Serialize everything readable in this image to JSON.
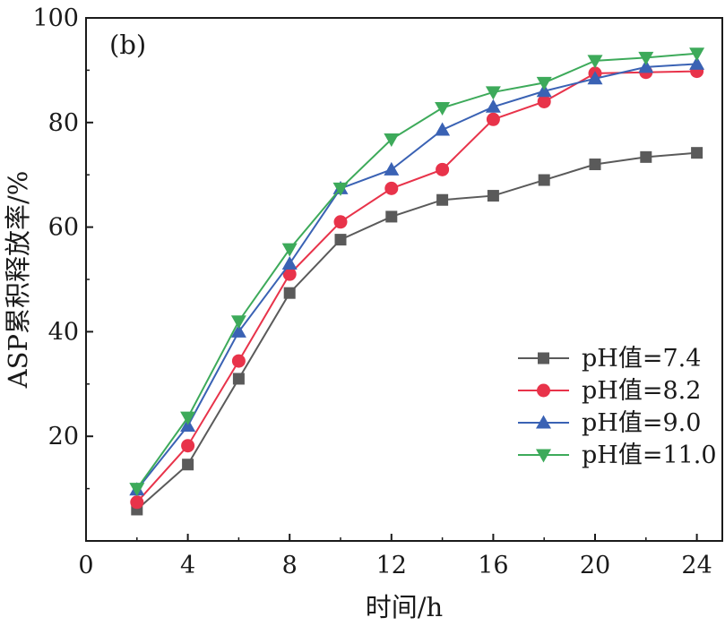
{
  "chart_data": {
    "type": "line",
    "panel_label": "(b)",
    "title": "",
    "xlabel": "时间/h",
    "ylabel": "ASP累积释放率/%",
    "xlim": [
      0,
      25
    ],
    "ylim": [
      0,
      100
    ],
    "xticks": [
      0,
      4,
      8,
      12,
      16,
      20,
      24
    ],
    "yticks": [
      20,
      40,
      60,
      80,
      100
    ],
    "grid": false,
    "legend_position": "bottom-right",
    "x": [
      2,
      4,
      6,
      8,
      10,
      12,
      14,
      16,
      18,
      20,
      22,
      24
    ],
    "series": [
      {
        "name": "pH值=7.4",
        "color": "#5a5a5a",
        "marker": "square",
        "values": [
          6.0,
          14.6,
          31.0,
          47.4,
          57.6,
          62.0,
          65.2,
          66.0,
          69.0,
          72.0,
          73.4,
          74.2
        ]
      },
      {
        "name": "pH值=8.2",
        "color": "#e8334a",
        "marker": "circle",
        "values": [
          7.4,
          18.2,
          34.4,
          51.0,
          61.0,
          67.4,
          71.0,
          80.6,
          84.0,
          89.4,
          89.6,
          89.8
        ]
      },
      {
        "name": "pH值=9.0",
        "color": "#3a62b4",
        "marker": "triangle-up",
        "values": [
          9.8,
          22.0,
          40.0,
          53.0,
          67.4,
          71.0,
          78.6,
          83.0,
          86.0,
          88.4,
          90.6,
          91.2
        ]
      },
      {
        "name": "pH值=11.0",
        "color": "#3daa5a",
        "marker": "triangle-down",
        "values": [
          10.0,
          23.6,
          42.0,
          55.8,
          67.4,
          76.8,
          82.8,
          85.8,
          87.6,
          91.8,
          92.4,
          93.2
        ]
      }
    ]
  }
}
